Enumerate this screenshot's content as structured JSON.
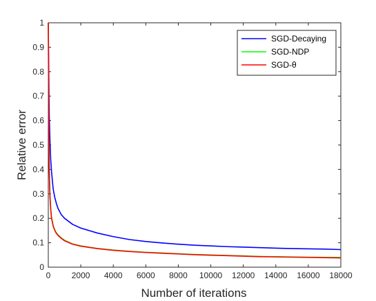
{
  "chart_data": {
    "type": "line",
    "xlabel": "Number of iterations",
    "ylabel": "Relative error",
    "xlim": [
      0,
      18000
    ],
    "ylim": [
      0,
      1
    ],
    "x_ticks": [
      "0",
      "2000",
      "4000",
      "6000",
      "8000",
      "10000",
      "12000",
      "14000",
      "16000",
      "18000"
    ],
    "y_ticks": [
      "0",
      "0.1",
      "0.2",
      "0.3",
      "0.4",
      "0.5",
      "0.6",
      "0.7",
      "0.8",
      "0.9",
      "1"
    ],
    "grid": false,
    "legend_position": "top-right",
    "series": [
      {
        "name": "SGD-Decaying",
        "color": "#0000ff",
        "x": [
          0,
          30,
          60,
          100,
          150,
          200,
          300,
          400,
          500,
          600,
          800,
          1000,
          1500,
          2000,
          3000,
          4000,
          5000,
          6000,
          7000,
          8000,
          9000,
          10000,
          11000,
          12000,
          13000,
          14000,
          15000,
          16000,
          17000,
          18000
        ],
        "y": [
          1.0,
          0.8,
          0.62,
          0.52,
          0.44,
          0.39,
          0.32,
          0.285,
          0.26,
          0.24,
          0.215,
          0.2,
          0.175,
          0.16,
          0.14,
          0.125,
          0.113,
          0.105,
          0.099,
          0.094,
          0.09,
          0.087,
          0.084,
          0.082,
          0.08,
          0.078,
          0.076,
          0.075,
          0.074,
          0.072
        ]
      },
      {
        "name": "SGD-NDP",
        "color": "#00ff00",
        "x": [
          0,
          30,
          60,
          100,
          150,
          200,
          300,
          400,
          500,
          600,
          800,
          1000,
          1500,
          2000,
          3000,
          4000,
          5000,
          6000,
          7000,
          8000,
          9000,
          10000,
          11000,
          12000,
          13000,
          14000,
          15000,
          16000,
          17000,
          18000
        ],
        "y": [
          1.0,
          0.58,
          0.4,
          0.3,
          0.24,
          0.205,
          0.17,
          0.152,
          0.14,
          0.132,
          0.12,
          0.11,
          0.095,
          0.087,
          0.077,
          0.07,
          0.065,
          0.061,
          0.058,
          0.055,
          0.052,
          0.05,
          0.048,
          0.046,
          0.044,
          0.043,
          0.042,
          0.041,
          0.04,
          0.04
        ]
      },
      {
        "name": "SGD-θ",
        "color": "#ff0000",
        "x": [
          0,
          30,
          60,
          100,
          150,
          200,
          300,
          400,
          500,
          600,
          800,
          1000,
          1500,
          2000,
          3000,
          4000,
          5000,
          6000,
          7000,
          8000,
          9000,
          10000,
          11000,
          12000,
          13000,
          14000,
          15000,
          16000,
          17000,
          18000
        ],
        "y": [
          1.0,
          0.57,
          0.39,
          0.29,
          0.235,
          0.2,
          0.168,
          0.15,
          0.138,
          0.13,
          0.118,
          0.108,
          0.094,
          0.086,
          0.076,
          0.069,
          0.064,
          0.06,
          0.057,
          0.054,
          0.051,
          0.049,
          0.047,
          0.045,
          0.043,
          0.042,
          0.041,
          0.04,
          0.039,
          0.038
        ]
      }
    ]
  }
}
